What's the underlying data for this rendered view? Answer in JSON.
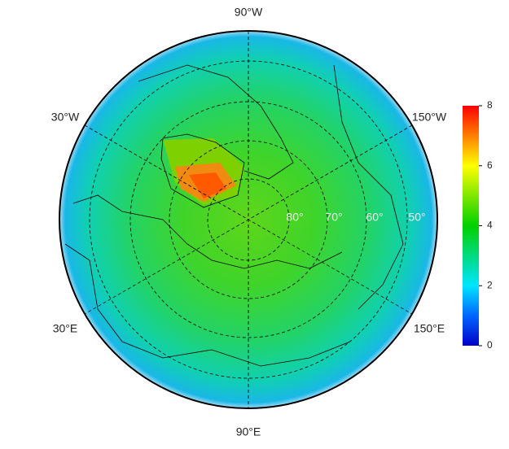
{
  "map": {
    "longitude_labels": {
      "top": "90°W",
      "upper_left": "30°W",
      "upper_right": "150°W",
      "lower_left": "30°E",
      "lower_right": "150°E",
      "bottom": "90°E"
    },
    "latitude_labels": [
      "80°",
      "70°",
      "60°",
      "50°"
    ],
    "colorbar": {
      "lim": [
        0,
        8
      ],
      "ticks": [
        0,
        2,
        4,
        6,
        8
      ]
    }
  }
}
